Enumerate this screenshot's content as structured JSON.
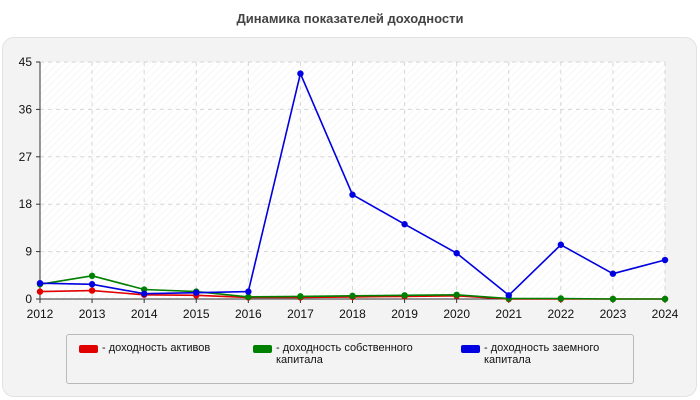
{
  "chart_data": {
    "type": "line",
    "title": "Динамика показателей доходности",
    "xlabel": "",
    "ylabel": "",
    "ylim": [
      0,
      45
    ],
    "y_ticks": [
      0,
      9,
      18,
      27,
      36,
      45
    ],
    "x": [
      "2012",
      "2013",
      "2014",
      "2015",
      "2016",
      "2017",
      "2018",
      "2019",
      "2020",
      "2021",
      "2022",
      "2023",
      "2024"
    ],
    "grid": true,
    "legend_position": "bottom",
    "series": [
      {
        "name": "- доходность активов",
        "color": "#e00000",
        "values": [
          1.4,
          1.6,
          0.8,
          0.7,
          0.3,
          0.3,
          0.4,
          0.5,
          0.6,
          0.0,
          0.0,
          0.0,
          0.0
        ]
      },
      {
        "name": "- доходность собственного капитала",
        "color": "#008000",
        "values": [
          2.8,
          4.4,
          1.8,
          1.4,
          0.4,
          0.5,
          0.6,
          0.7,
          0.8,
          0.1,
          0.1,
          0.0,
          0.0
        ]
      },
      {
        "name": "- доходность заемного капитала",
        "color": "#0000e0",
        "values": [
          3.0,
          2.8,
          1.0,
          1.2,
          1.4,
          42.8,
          19.8,
          14.2,
          8.7,
          0.7,
          10.3,
          4.8,
          7.4
        ]
      }
    ]
  }
}
